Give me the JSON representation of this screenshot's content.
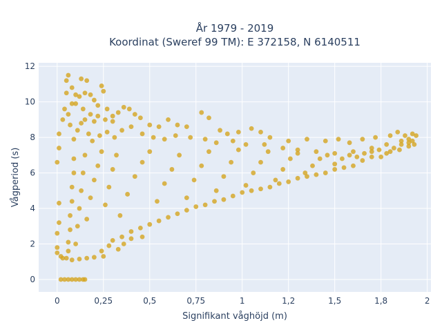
{
  "chart_data": {
    "type": "scatter",
    "title_line1": "År 1979 - 2019",
    "title_line2": "Koordinat (Sweref 99 TM): E 372158, N 6140511",
    "xlabel": "Signifikant våghöjd (m)",
    "ylabel": "Vågperiod (s)",
    "xlim": [
      -0.1,
      2.02
    ],
    "ylim": [
      -0.7,
      12.2
    ],
    "x_ticks": [
      0,
      0.25,
      0.5,
      0.75,
      1,
      1.25,
      1.5,
      1.75,
      2
    ],
    "x_tick_labels": [
      "0",
      "0,25",
      "0,5",
      "0,75",
      "1",
      "1,2",
      "1,5",
      "1,8",
      "2"
    ],
    "y_ticks": [
      0,
      2,
      4,
      6,
      8,
      10,
      12
    ],
    "y_tick_labels": [
      "0",
      "2",
      "4",
      "6",
      "8",
      "10",
      "12"
    ],
    "grid": true,
    "colors": {
      "point": "#d4a520",
      "plot_bg": "#e5ecf6",
      "grid": "#ffffff",
      "text": "#2a3f5f"
    },
    "points": [
      [
        0.02,
        0.0
      ],
      [
        0.04,
        0.0
      ],
      [
        0.06,
        0.0
      ],
      [
        0.08,
        0.0
      ],
      [
        0.1,
        0.0
      ],
      [
        0.12,
        0.0
      ],
      [
        0.14,
        0.0
      ],
      [
        0.15,
        0.0
      ],
      [
        0.0,
        1.5
      ],
      [
        0.0,
        1.8
      ],
      [
        0.0,
        2.6
      ],
      [
        0.0,
        6.6
      ],
      [
        0.01,
        8.2
      ],
      [
        0.01,
        7.4
      ],
      [
        0.01,
        4.3
      ],
      [
        0.01,
        3.2
      ],
      [
        0.02,
        1.3
      ],
      [
        0.03,
        1.2
      ],
      [
        0.05,
        1.2
      ],
      [
        0.08,
        1.1
      ],
      [
        0.12,
        1.15
      ],
      [
        0.16,
        1.2
      ],
      [
        0.2,
        1.25
      ],
      [
        0.25,
        1.3
      ],
      [
        0.03,
        9.0
      ],
      [
        0.04,
        9.6
      ],
      [
        0.05,
        10.5
      ],
      [
        0.05,
        11.2
      ],
      [
        0.06,
        11.5
      ],
      [
        0.08,
        10.8
      ],
      [
        0.1,
        9.9
      ],
      [
        0.12,
        10.3
      ],
      [
        0.13,
        11.3
      ],
      [
        0.15,
        10.5
      ],
      [
        0.16,
        11.2
      ],
      [
        0.18,
        10.4
      ],
      [
        0.2,
        10.1
      ],
      [
        0.22,
        9.8
      ],
      [
        0.24,
        10.9
      ],
      [
        0.25,
        10.6
      ],
      [
        0.27,
        9.6
      ],
      [
        0.3,
        9.2
      ],
      [
        0.33,
        9.4
      ],
      [
        0.36,
        9.7
      ],
      [
        0.39,
        9.6
      ],
      [
        0.42,
        9.3
      ],
      [
        0.45,
        9.1
      ],
      [
        0.5,
        8.7
      ],
      [
        0.55,
        8.6
      ],
      [
        0.6,
        9.0
      ],
      [
        0.65,
        8.7
      ],
      [
        0.7,
        8.6
      ],
      [
        0.78,
        9.4
      ],
      [
        0.82,
        9.1
      ],
      [
        0.88,
        8.4
      ],
      [
        0.92,
        8.2
      ],
      [
        0.98,
        8.3
      ],
      [
        1.05,
        8.5
      ],
      [
        1.1,
        8.3
      ],
      [
        1.15,
        8.0
      ],
      [
        1.25,
        7.8
      ],
      [
        1.35,
        7.9
      ],
      [
        1.45,
        7.8
      ],
      [
        1.52,
        7.9
      ],
      [
        1.58,
        7.7
      ],
      [
        1.65,
        7.9
      ],
      [
        1.72,
        8.0
      ],
      [
        1.8,
        8.1
      ],
      [
        1.84,
        8.3
      ],
      [
        1.88,
        8.1
      ],
      [
        1.92,
        8.2
      ],
      [
        1.94,
        8.1
      ],
      [
        1.93,
        7.6
      ],
      [
        1.9,
        7.5
      ],
      [
        1.85,
        7.3
      ],
      [
        1.8,
        7.2
      ],
      [
        1.75,
        6.9
      ],
      [
        1.7,
        6.9
      ],
      [
        1.65,
        6.7
      ],
      [
        1.6,
        6.4
      ],
      [
        1.55,
        6.3
      ],
      [
        1.5,
        6.2
      ],
      [
        1.45,
        6.0
      ],
      [
        1.4,
        5.9
      ],
      [
        1.35,
        5.8
      ],
      [
        1.3,
        5.7
      ],
      [
        1.25,
        5.5
      ],
      [
        1.2,
        5.4
      ],
      [
        1.15,
        5.2
      ],
      [
        1.1,
        5.1
      ],
      [
        1.05,
        5.0
      ],
      [
        1.0,
        4.9
      ],
      [
        0.95,
        4.7
      ],
      [
        0.9,
        4.5
      ],
      [
        0.85,
        4.4
      ],
      [
        0.8,
        4.2
      ],
      [
        0.75,
        4.1
      ],
      [
        0.7,
        3.9
      ],
      [
        0.65,
        3.7
      ],
      [
        0.6,
        3.5
      ],
      [
        0.55,
        3.3
      ],
      [
        0.5,
        3.1
      ],
      [
        0.45,
        2.9
      ],
      [
        0.4,
        2.7
      ],
      [
        0.35,
        2.4
      ],
      [
        0.3,
        2.2
      ],
      [
        0.28,
        1.9
      ],
      [
        0.24,
        1.6
      ],
      [
        0.46,
        2.4
      ],
      [
        0.4,
        2.3
      ],
      [
        0.36,
        2.0
      ],
      [
        0.33,
        1.7
      ],
      [
        0.2,
        8.9
      ],
      [
        0.18,
        9.3
      ],
      [
        0.22,
        9.2
      ],
      [
        0.26,
        9.0
      ],
      [
        0.3,
        8.9
      ],
      [
        0.14,
        9.6
      ],
      [
        0.1,
        10.4
      ],
      [
        0.08,
        9.9
      ],
      [
        0.06,
        9.3
      ],
      [
        0.07,
        8.7
      ],
      [
        0.09,
        7.9
      ],
      [
        0.11,
        8.4
      ],
      [
        0.13,
        8.8
      ],
      [
        0.15,
        9.0
      ],
      [
        0.17,
        8.2
      ],
      [
        0.19,
        7.8
      ],
      [
        0.23,
        8.1
      ],
      [
        0.27,
        8.3
      ],
      [
        0.31,
        8.0
      ],
      [
        0.35,
        8.4
      ],
      [
        0.4,
        8.6
      ],
      [
        0.46,
        8.2
      ],
      [
        0.52,
        8.0
      ],
      [
        0.58,
        7.9
      ],
      [
        0.64,
        8.1
      ],
      [
        0.72,
        8.0
      ],
      [
        0.8,
        7.9
      ],
      [
        0.86,
        7.7
      ],
      [
        0.95,
        7.8
      ],
      [
        1.02,
        7.6
      ],
      [
        1.12,
        7.6
      ],
      [
        1.22,
        7.4
      ],
      [
        1.3,
        7.3
      ],
      [
        1.4,
        7.2
      ],
      [
        1.5,
        7.1
      ],
      [
        1.6,
        7.2
      ],
      [
        1.7,
        7.4
      ],
      [
        1.78,
        7.6
      ],
      [
        1.86,
        7.8
      ],
      [
        1.9,
        7.9
      ],
      [
        0.06,
        1.6
      ],
      [
        0.06,
        2.1
      ],
      [
        0.07,
        2.8
      ],
      [
        0.07,
        3.6
      ],
      [
        0.08,
        4.4
      ],
      [
        0.08,
        5.2
      ],
      [
        0.09,
        6.0
      ],
      [
        0.09,
        6.8
      ],
      [
        0.1,
        2.0
      ],
      [
        0.11,
        3.0
      ],
      [
        0.12,
        4.0
      ],
      [
        0.13,
        5.0
      ],
      [
        0.14,
        6.0
      ],
      [
        0.15,
        7.0
      ],
      [
        0.16,
        3.4
      ],
      [
        0.18,
        4.6
      ],
      [
        0.2,
        5.6
      ],
      [
        0.22,
        6.4
      ],
      [
        0.24,
        7.2
      ],
      [
        0.26,
        4.2
      ],
      [
        0.28,
        5.2
      ],
      [
        0.3,
        6.2
      ],
      [
        0.32,
        7.0
      ],
      [
        0.34,
        3.6
      ],
      [
        0.38,
        4.8
      ],
      [
        0.42,
        5.8
      ],
      [
        0.46,
        6.6
      ],
      [
        0.5,
        7.2
      ],
      [
        0.54,
        4.4
      ],
      [
        0.58,
        5.4
      ],
      [
        0.62,
        6.2
      ],
      [
        0.66,
        7.0
      ],
      [
        0.7,
        4.6
      ],
      [
        0.74,
        5.6
      ],
      [
        0.78,
        6.4
      ],
      [
        0.82,
        7.2
      ],
      [
        0.86,
        5.0
      ],
      [
        0.9,
        5.8
      ],
      [
        0.94,
        6.6
      ],
      [
        0.98,
        7.3
      ],
      [
        1.02,
        5.3
      ],
      [
        1.06,
        6.0
      ],
      [
        1.1,
        6.6
      ],
      [
        1.14,
        7.2
      ],
      [
        1.18,
        5.6
      ],
      [
        1.22,
        6.2
      ],
      [
        1.26,
        6.8
      ],
      [
        1.3,
        7.1
      ],
      [
        1.34,
        6.0
      ],
      [
        1.38,
        6.4
      ],
      [
        1.42,
        6.8
      ],
      [
        1.46,
        7.0
      ],
      [
        1.5,
        6.5
      ],
      [
        1.54,
        6.8
      ],
      [
        1.58,
        7.0
      ],
      [
        1.62,
        6.9
      ],
      [
        1.66,
        7.1
      ],
      [
        1.7,
        7.2
      ],
      [
        1.74,
        7.3
      ],
      [
        1.78,
        7.1
      ],
      [
        1.82,
        7.4
      ],
      [
        1.86,
        7.6
      ],
      [
        1.9,
        7.7
      ],
      [
        1.92,
        7.8
      ]
    ]
  }
}
